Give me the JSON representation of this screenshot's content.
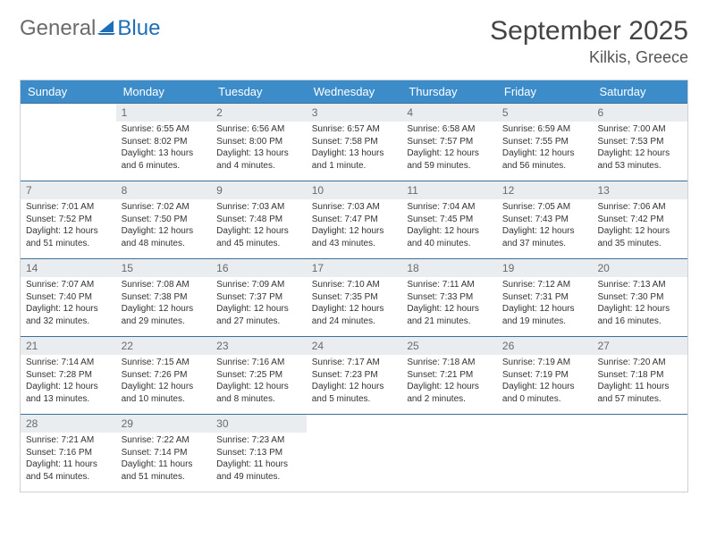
{
  "logo": {
    "general": "General",
    "blue": "Blue"
  },
  "title": "September 2025",
  "location": "Kilkis, Greece",
  "colors": {
    "header_bg": "#3c8cc9",
    "header_text": "#ffffff",
    "daynum_bg": "#e9edef",
    "week_border": "#3c6f9b",
    "outer_border": "#d0d0d0",
    "logo_general": "#6b6b6b",
    "logo_blue": "#1f6fb8"
  },
  "weekdays": [
    "Sunday",
    "Monday",
    "Tuesday",
    "Wednesday",
    "Thursday",
    "Friday",
    "Saturday"
  ],
  "weeks": [
    [
      {
        "n": "",
        "sr": "",
        "ss": "",
        "dl": ""
      },
      {
        "n": "1",
        "sr": "Sunrise: 6:55 AM",
        "ss": "Sunset: 8:02 PM",
        "dl": "Daylight: 13 hours and 6 minutes."
      },
      {
        "n": "2",
        "sr": "Sunrise: 6:56 AM",
        "ss": "Sunset: 8:00 PM",
        "dl": "Daylight: 13 hours and 4 minutes."
      },
      {
        "n": "3",
        "sr": "Sunrise: 6:57 AM",
        "ss": "Sunset: 7:58 PM",
        "dl": "Daylight: 13 hours and 1 minute."
      },
      {
        "n": "4",
        "sr": "Sunrise: 6:58 AM",
        "ss": "Sunset: 7:57 PM",
        "dl": "Daylight: 12 hours and 59 minutes."
      },
      {
        "n": "5",
        "sr": "Sunrise: 6:59 AM",
        "ss": "Sunset: 7:55 PM",
        "dl": "Daylight: 12 hours and 56 minutes."
      },
      {
        "n": "6",
        "sr": "Sunrise: 7:00 AM",
        "ss": "Sunset: 7:53 PM",
        "dl": "Daylight: 12 hours and 53 minutes."
      }
    ],
    [
      {
        "n": "7",
        "sr": "Sunrise: 7:01 AM",
        "ss": "Sunset: 7:52 PM",
        "dl": "Daylight: 12 hours and 51 minutes."
      },
      {
        "n": "8",
        "sr": "Sunrise: 7:02 AM",
        "ss": "Sunset: 7:50 PM",
        "dl": "Daylight: 12 hours and 48 minutes."
      },
      {
        "n": "9",
        "sr": "Sunrise: 7:03 AM",
        "ss": "Sunset: 7:48 PM",
        "dl": "Daylight: 12 hours and 45 minutes."
      },
      {
        "n": "10",
        "sr": "Sunrise: 7:03 AM",
        "ss": "Sunset: 7:47 PM",
        "dl": "Daylight: 12 hours and 43 minutes."
      },
      {
        "n": "11",
        "sr": "Sunrise: 7:04 AM",
        "ss": "Sunset: 7:45 PM",
        "dl": "Daylight: 12 hours and 40 minutes."
      },
      {
        "n": "12",
        "sr": "Sunrise: 7:05 AM",
        "ss": "Sunset: 7:43 PM",
        "dl": "Daylight: 12 hours and 37 minutes."
      },
      {
        "n": "13",
        "sr": "Sunrise: 7:06 AM",
        "ss": "Sunset: 7:42 PM",
        "dl": "Daylight: 12 hours and 35 minutes."
      }
    ],
    [
      {
        "n": "14",
        "sr": "Sunrise: 7:07 AM",
        "ss": "Sunset: 7:40 PM",
        "dl": "Daylight: 12 hours and 32 minutes."
      },
      {
        "n": "15",
        "sr": "Sunrise: 7:08 AM",
        "ss": "Sunset: 7:38 PM",
        "dl": "Daylight: 12 hours and 29 minutes."
      },
      {
        "n": "16",
        "sr": "Sunrise: 7:09 AM",
        "ss": "Sunset: 7:37 PM",
        "dl": "Daylight: 12 hours and 27 minutes."
      },
      {
        "n": "17",
        "sr": "Sunrise: 7:10 AM",
        "ss": "Sunset: 7:35 PM",
        "dl": "Daylight: 12 hours and 24 minutes."
      },
      {
        "n": "18",
        "sr": "Sunrise: 7:11 AM",
        "ss": "Sunset: 7:33 PM",
        "dl": "Daylight: 12 hours and 21 minutes."
      },
      {
        "n": "19",
        "sr": "Sunrise: 7:12 AM",
        "ss": "Sunset: 7:31 PM",
        "dl": "Daylight: 12 hours and 19 minutes."
      },
      {
        "n": "20",
        "sr": "Sunrise: 7:13 AM",
        "ss": "Sunset: 7:30 PM",
        "dl": "Daylight: 12 hours and 16 minutes."
      }
    ],
    [
      {
        "n": "21",
        "sr": "Sunrise: 7:14 AM",
        "ss": "Sunset: 7:28 PM",
        "dl": "Daylight: 12 hours and 13 minutes."
      },
      {
        "n": "22",
        "sr": "Sunrise: 7:15 AM",
        "ss": "Sunset: 7:26 PM",
        "dl": "Daylight: 12 hours and 10 minutes."
      },
      {
        "n": "23",
        "sr": "Sunrise: 7:16 AM",
        "ss": "Sunset: 7:25 PM",
        "dl": "Daylight: 12 hours and 8 minutes."
      },
      {
        "n": "24",
        "sr": "Sunrise: 7:17 AM",
        "ss": "Sunset: 7:23 PM",
        "dl": "Daylight: 12 hours and 5 minutes."
      },
      {
        "n": "25",
        "sr": "Sunrise: 7:18 AM",
        "ss": "Sunset: 7:21 PM",
        "dl": "Daylight: 12 hours and 2 minutes."
      },
      {
        "n": "26",
        "sr": "Sunrise: 7:19 AM",
        "ss": "Sunset: 7:19 PM",
        "dl": "Daylight: 12 hours and 0 minutes."
      },
      {
        "n": "27",
        "sr": "Sunrise: 7:20 AM",
        "ss": "Sunset: 7:18 PM",
        "dl": "Daylight: 11 hours and 57 minutes."
      }
    ],
    [
      {
        "n": "28",
        "sr": "Sunrise: 7:21 AM",
        "ss": "Sunset: 7:16 PM",
        "dl": "Daylight: 11 hours and 54 minutes."
      },
      {
        "n": "29",
        "sr": "Sunrise: 7:22 AM",
        "ss": "Sunset: 7:14 PM",
        "dl": "Daylight: 11 hours and 51 minutes."
      },
      {
        "n": "30",
        "sr": "Sunrise: 7:23 AM",
        "ss": "Sunset: 7:13 PM",
        "dl": "Daylight: 11 hours and 49 minutes."
      },
      {
        "n": "",
        "sr": "",
        "ss": "",
        "dl": ""
      },
      {
        "n": "",
        "sr": "",
        "ss": "",
        "dl": ""
      },
      {
        "n": "",
        "sr": "",
        "ss": "",
        "dl": ""
      },
      {
        "n": "",
        "sr": "",
        "ss": "",
        "dl": ""
      }
    ]
  ]
}
